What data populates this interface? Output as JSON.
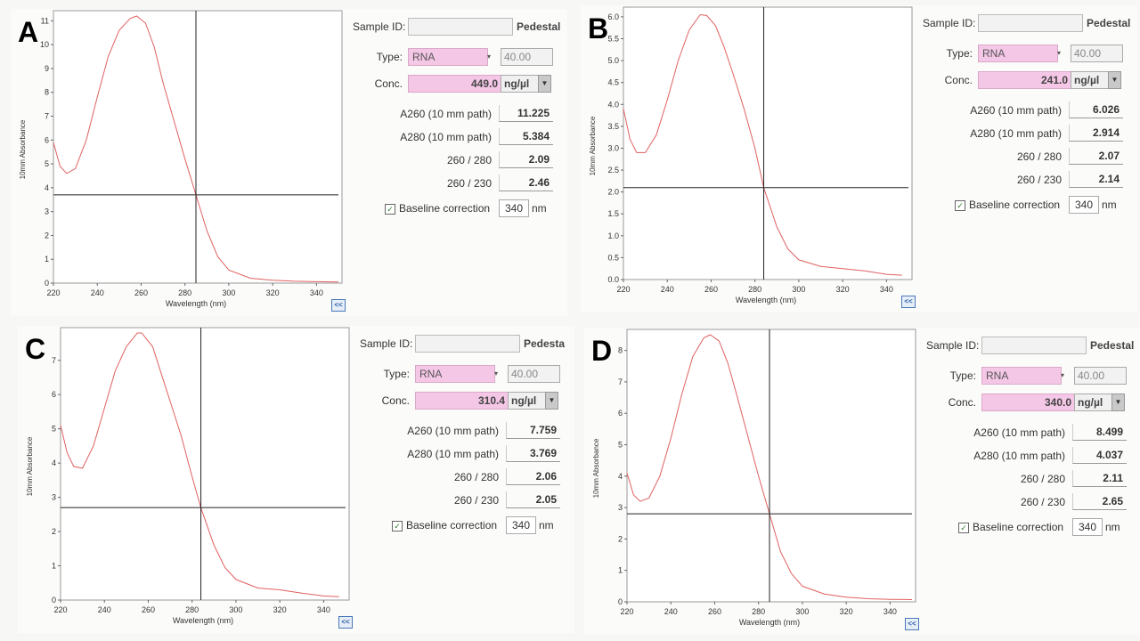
{
  "labels": {
    "sample_id": "Sample ID:",
    "pedestal": "Pedestal",
    "type": "Type:",
    "conc": "Conc.",
    "a260": "A260 (10 mm path)",
    "a280": "A280 (10 mm path)",
    "r260_280": "260 / 280",
    "r260_230": "260 / 230",
    "baseline": "Baseline correction",
    "nm": "nm",
    "xlabel": "Wavelength (nm)",
    "ylabel": "10mm Absorbance",
    "collapse": "<<",
    "dropdown_arrow": "▼",
    "type_arrow": "▾",
    "check": "✓"
  },
  "colors": {
    "curve": "#e06060",
    "crosshair": "#222222",
    "conc_highlight": "#f5c7e6"
  },
  "panels": [
    {
      "letter": "A",
      "pedestal_text": "Pedestal",
      "sample_type": "RNA",
      "factor": "40.00",
      "conc": "449.0",
      "unit": "ng/µl",
      "a260": "11.225",
      "a280": "5.384",
      "r260_280": "2.09",
      "r260_230": "2.46",
      "baseline_nm": "340",
      "baseline_checked": true
    },
    {
      "letter": "B",
      "pedestal_text": "Pedestal",
      "sample_type": "RNA",
      "factor": "40.00",
      "conc": "241.0",
      "unit": "ng/µl",
      "a260": "6.026",
      "a280": "2.914",
      "r260_280": "2.07",
      "r260_230": "2.14",
      "baseline_nm": "340",
      "baseline_checked": true
    },
    {
      "letter": "C",
      "pedestal_text": "Pedesta",
      "sample_type": "RNA",
      "factor": "40.00",
      "conc": "310.4",
      "unit": "ng/µl",
      "a260": "7.759",
      "a280": "3.769",
      "r260_280": "2.06",
      "r260_230": "2.05",
      "baseline_nm": "340",
      "baseline_checked": true
    },
    {
      "letter": "D",
      "pedestal_text": "Pedestal",
      "sample_type": "RNA",
      "factor": "40.00",
      "conc": "340.0",
      "unit": "ng/µl",
      "a260": "8.499",
      "a280": "4.037",
      "r260_280": "2.11",
      "r260_230": "2.65",
      "baseline_nm": "340",
      "baseline_checked": true
    }
  ],
  "chart_data": [
    {
      "type": "line",
      "xlabel": "Wavelength (nm)",
      "ylabel": "10mm Absorbance",
      "xlim": [
        220,
        350
      ],
      "ylim": [
        0,
        11.2
      ],
      "xticks": [
        220,
        240,
        260,
        280,
        300,
        320,
        340
      ],
      "yticks": [
        0,
        1,
        2,
        3,
        4,
        5,
        6,
        7,
        8,
        9,
        10,
        11
      ],
      "ytick_labels": [
        "0",
        "1",
        "2",
        "3",
        "4",
        "5",
        "6",
        "7",
        "8",
        "9",
        "10",
        "11"
      ],
      "crosshair": {
        "x": 285,
        "y": 3.7
      },
      "series": [
        {
          "x": [
            220,
            223,
            226,
            230,
            235,
            240,
            245,
            250,
            255,
            258,
            262,
            266,
            270,
            275,
            280,
            285,
            290,
            295,
            300,
            310,
            320,
            330,
            340,
            350
          ],
          "y": [
            5.9,
            4.9,
            4.6,
            4.8,
            6.0,
            7.8,
            9.5,
            10.6,
            11.1,
            11.2,
            10.9,
            9.9,
            8.4,
            6.8,
            5.2,
            3.7,
            2.2,
            1.1,
            0.55,
            0.2,
            0.12,
            0.08,
            0.06,
            0.05
          ]
        }
      ]
    },
    {
      "type": "line",
      "xlabel": "Wavelength (nm)",
      "ylabel": "10mm Absorbance",
      "xlim": [
        220,
        350
      ],
      "ylim": [
        0,
        6.1
      ],
      "xticks": [
        220,
        240,
        260,
        280,
        300,
        320,
        340
      ],
      "yticks": [
        0,
        0.5,
        1,
        1.5,
        2,
        2.5,
        3,
        3.5,
        4,
        4.5,
        5,
        5.5,
        6
      ],
      "ytick_labels": [
        "0.0",
        "0.5",
        "1.0",
        "1.5",
        "2.0",
        "2.5",
        "3.0",
        "3.5",
        "4.0",
        "4.5",
        "5.0",
        "5.5",
        "6.0"
      ],
      "crosshair": {
        "x": 284,
        "y": 2.1
      },
      "series": [
        {
          "x": [
            220,
            223,
            226,
            230,
            235,
            240,
            245,
            250,
            255,
            258,
            262,
            266,
            270,
            275,
            280,
            284,
            290,
            295,
            300,
            310,
            320,
            330,
            340,
            347
          ],
          "y": [
            3.9,
            3.2,
            2.9,
            2.9,
            3.3,
            4.1,
            5.0,
            5.7,
            6.05,
            6.03,
            5.8,
            5.3,
            4.7,
            3.9,
            3.0,
            2.1,
            1.2,
            0.7,
            0.45,
            0.3,
            0.25,
            0.2,
            0.12,
            0.1
          ]
        }
      ]
    },
    {
      "type": "line",
      "xlabel": "Wavelength (nm)",
      "ylabel": "10mm Absorbance",
      "xlim": [
        220,
        350
      ],
      "ylim": [
        0,
        7.8
      ],
      "xticks": [
        220,
        240,
        260,
        280,
        300,
        320,
        340
      ],
      "yticks": [
        0,
        1,
        2,
        3,
        4,
        5,
        6,
        7
      ],
      "ytick_labels": [
        "0",
        "1",
        "2",
        "3",
        "4",
        "5",
        "6",
        "7"
      ],
      "crosshair": {
        "x": 284,
        "y": 2.7
      },
      "series": [
        {
          "x": [
            220,
            223,
            226,
            230,
            235,
            240,
            245,
            250,
            255,
            257,
            262,
            266,
            270,
            275,
            280,
            284,
            290,
            295,
            300,
            310,
            320,
            330,
            340,
            347
          ],
          "y": [
            5.1,
            4.3,
            3.9,
            3.85,
            4.5,
            5.6,
            6.7,
            7.4,
            7.8,
            7.8,
            7.4,
            6.6,
            5.8,
            4.8,
            3.6,
            2.7,
            1.6,
            0.95,
            0.6,
            0.35,
            0.3,
            0.2,
            0.12,
            0.1
          ]
        }
      ]
    },
    {
      "type": "line",
      "xlabel": "Wavelength (nm)",
      "ylabel": "10mm Absorbance",
      "xlim": [
        220,
        350
      ],
      "ylim": [
        0,
        8.5
      ],
      "xticks": [
        220,
        240,
        260,
        280,
        300,
        320,
        340
      ],
      "yticks": [
        0,
        1,
        2,
        3,
        4,
        5,
        6,
        7,
        8
      ],
      "ytick_labels": [
        "0",
        "1",
        "2",
        "3",
        "4",
        "5",
        "6",
        "7",
        "8"
      ],
      "crosshair": {
        "x": 285,
        "y": 2.8
      },
      "series": [
        {
          "x": [
            220,
            223,
            226,
            230,
            235,
            240,
            245,
            250,
            255,
            258,
            262,
            266,
            270,
            275,
            280,
            285,
            290,
            295,
            300,
            310,
            320,
            330,
            340,
            350
          ],
          "y": [
            4.1,
            3.4,
            3.2,
            3.3,
            4.0,
            5.2,
            6.6,
            7.8,
            8.4,
            8.5,
            8.3,
            7.6,
            6.6,
            5.3,
            4.0,
            2.8,
            1.6,
            0.9,
            0.5,
            0.25,
            0.15,
            0.1,
            0.08,
            0.07
          ]
        }
      ]
    }
  ]
}
